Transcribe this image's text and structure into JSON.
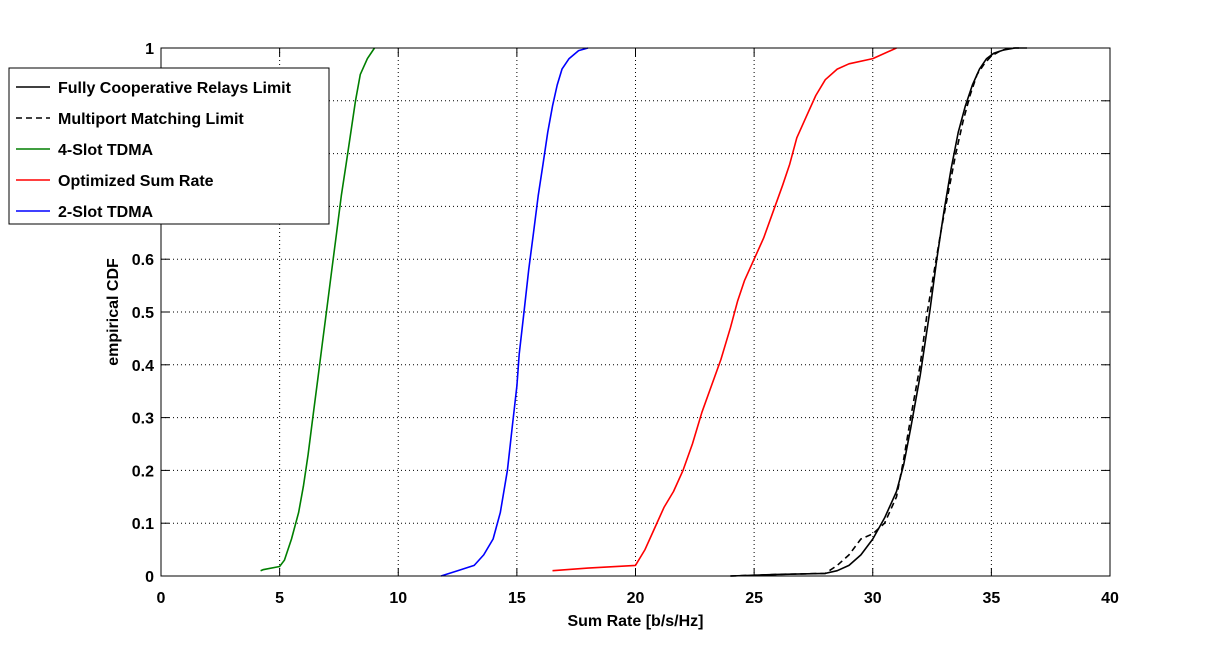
{
  "chart_data": {
    "type": "line",
    "title": "",
    "xlabel": "Sum Rate [b/s/Hz]",
    "ylabel": "empirical CDF",
    "xlim": [
      0,
      40
    ],
    "ylim": [
      0,
      1
    ],
    "xticks": [
      0,
      5,
      10,
      15,
      20,
      25,
      30,
      35,
      40
    ],
    "yticks": [
      0,
      0.1,
      0.2,
      0.3,
      0.4,
      0.5,
      0.6,
      0.7,
      0.8,
      0.9,
      1
    ],
    "ytick_labels_shown": [
      "0",
      "0.1",
      "0.2",
      "0.3",
      "0.4",
      "0.5",
      "0.6",
      "1"
    ],
    "grid": true,
    "grid_style": "dotted",
    "legend_position": "top-left",
    "series": [
      {
        "name": "Fully Cooperative Relays Limit",
        "color": "#000000",
        "dash": "solid",
        "x": [
          24.0,
          26.0,
          28.0,
          28.5,
          29.0,
          29.5,
          30.0,
          30.5,
          31.0,
          31.3,
          31.6,
          32.0,
          32.4,
          32.7,
          33.0,
          33.3,
          33.6,
          33.9,
          34.2,
          34.5,
          34.8,
          35.1,
          35.5,
          36.0,
          36.5
        ],
        "y": [
          0.0,
          0.003,
          0.005,
          0.01,
          0.02,
          0.04,
          0.07,
          0.11,
          0.16,
          0.21,
          0.28,
          0.38,
          0.5,
          0.6,
          0.69,
          0.77,
          0.84,
          0.89,
          0.93,
          0.96,
          0.98,
          0.99,
          0.996,
          1.0,
          1.0
        ]
      },
      {
        "name": "Multiport Matching Limit",
        "color": "#000000",
        "dash": "dashed",
        "x": [
          24.0,
          26.0,
          28.0,
          28.5,
          29.0,
          29.5,
          30.0,
          30.5,
          31.0,
          31.3,
          31.6,
          32.0,
          32.3,
          32.6,
          32.9,
          33.2,
          33.5,
          33.8,
          34.1,
          34.4,
          34.7,
          35.0,
          35.4,
          35.8,
          36.3
        ],
        "y": [
          0.0,
          0.003,
          0.005,
          0.02,
          0.04,
          0.07,
          0.08,
          0.1,
          0.15,
          0.22,
          0.3,
          0.4,
          0.5,
          0.58,
          0.66,
          0.73,
          0.8,
          0.86,
          0.91,
          0.95,
          0.97,
          0.985,
          0.995,
          1.0,
          1.0
        ]
      },
      {
        "name": "4-Slot TDMA",
        "color": "#007f00",
        "dash": "solid",
        "x": [
          4.2,
          4.3,
          5.0,
          5.2,
          5.5,
          5.8,
          6.0,
          6.2,
          6.4,
          6.6,
          6.8,
          7.0,
          7.2,
          7.4,
          7.6,
          7.8,
          8.0,
          8.2,
          8.4,
          8.7,
          9.0
        ],
        "y": [
          0.01,
          0.012,
          0.018,
          0.03,
          0.07,
          0.12,
          0.17,
          0.23,
          0.3,
          0.37,
          0.44,
          0.51,
          0.58,
          0.65,
          0.72,
          0.78,
          0.84,
          0.9,
          0.95,
          0.98,
          1.0
        ]
      },
      {
        "name": "Optimized Sum Rate",
        "color": "#ff0000",
        "dash": "solid",
        "x": [
          16.5,
          18.0,
          20.0,
          20.4,
          20.8,
          21.2,
          21.6,
          22.0,
          22.4,
          22.8,
          23.2,
          23.6,
          24.0,
          24.3,
          24.6,
          25.0,
          25.4,
          25.8,
          26.2,
          26.5,
          26.8,
          27.2,
          27.6,
          28.0,
          28.5,
          29.0,
          30.0,
          31.0
        ],
        "y": [
          0.01,
          0.015,
          0.02,
          0.05,
          0.09,
          0.13,
          0.16,
          0.2,
          0.25,
          0.31,
          0.36,
          0.41,
          0.47,
          0.52,
          0.56,
          0.6,
          0.64,
          0.69,
          0.74,
          0.78,
          0.83,
          0.87,
          0.91,
          0.94,
          0.96,
          0.97,
          0.98,
          1.0
        ]
      },
      {
        "name": "2-Slot TDMA",
        "color": "#0000ff",
        "dash": "solid",
        "x": [
          11.8,
          12.5,
          13.2,
          13.6,
          14.0,
          14.3,
          14.6,
          14.8,
          15.0,
          15.1,
          15.3,
          15.5,
          15.7,
          15.9,
          16.1,
          16.3,
          16.5,
          16.7,
          16.9,
          17.2,
          17.6,
          18.0
        ],
        "y": [
          0.0,
          0.01,
          0.02,
          0.04,
          0.07,
          0.12,
          0.2,
          0.28,
          0.36,
          0.42,
          0.5,
          0.58,
          0.65,
          0.72,
          0.78,
          0.84,
          0.89,
          0.93,
          0.96,
          0.98,
          0.995,
          1.0
        ]
      }
    ]
  }
}
